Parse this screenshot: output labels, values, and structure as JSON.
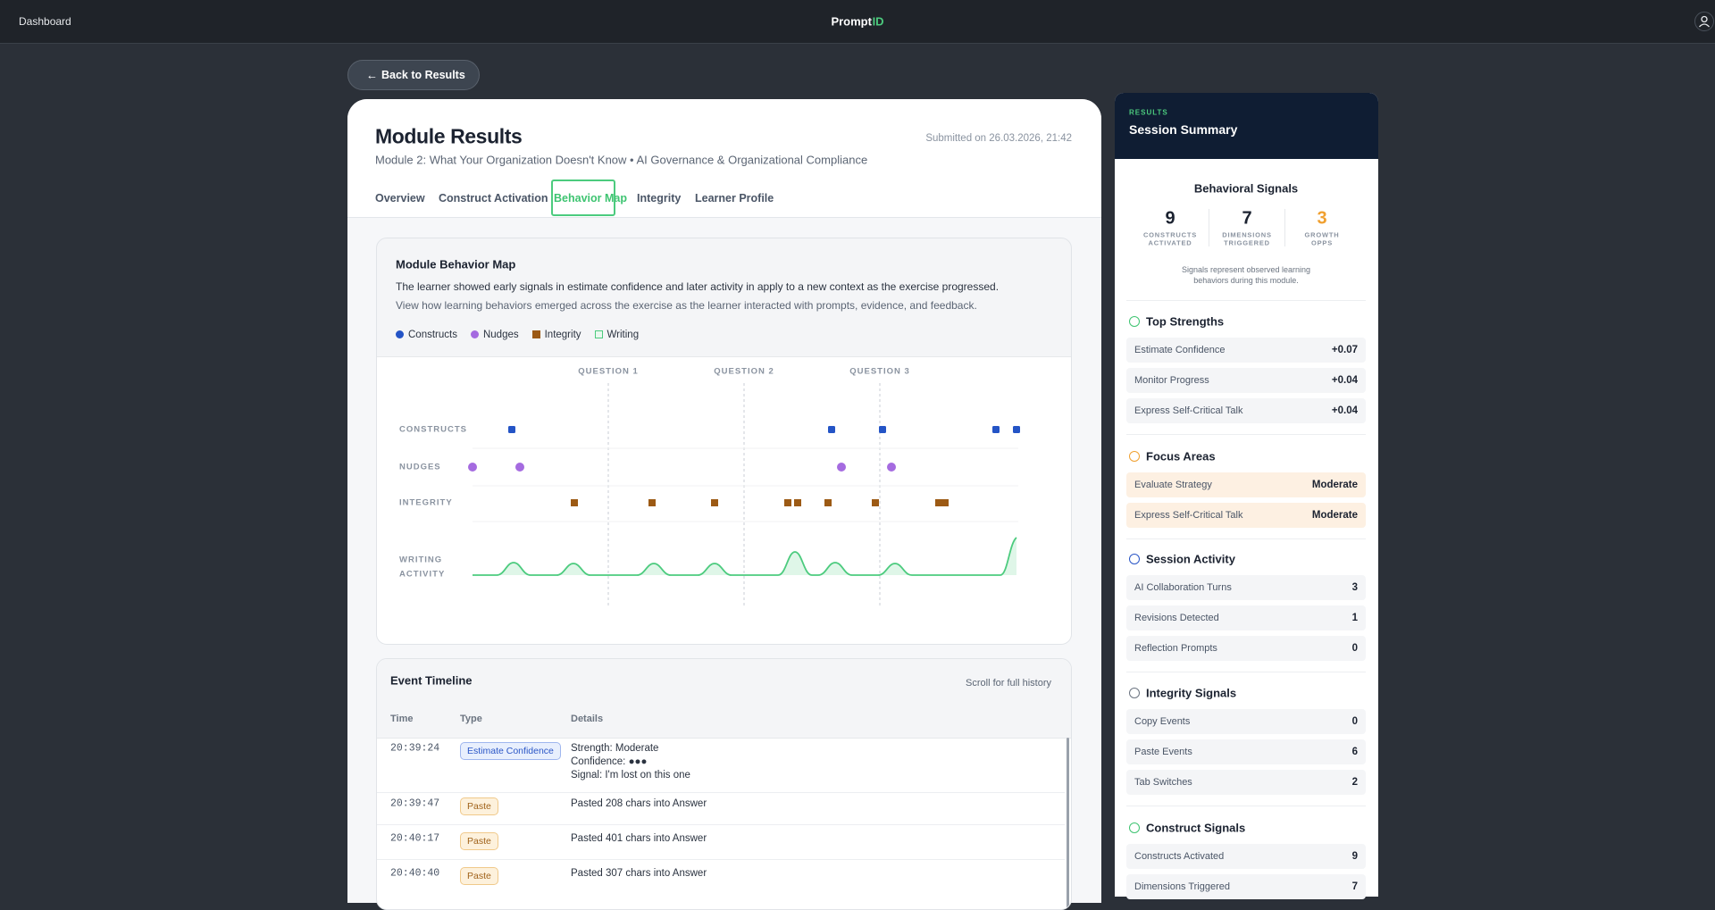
{
  "nav": {
    "left": "Dashboard",
    "brand": "Prompt",
    "brand_accent": "ID"
  },
  "back_button": "Back to Results",
  "header": {
    "title": "Module Results",
    "subtitle": "Module 2: What Your Organization Doesn't Know • AI Governance & Organizational Compliance",
    "submitted": "Submitted on 26.03.2026, 21:42"
  },
  "tabs": [
    "Overview",
    "Construct Activation",
    "Behavior Map",
    "Integrity",
    "Learner Profile"
  ],
  "active_tab": 2,
  "behavior_map": {
    "title": "Module Behavior Map",
    "summary": "The learner showed early signals in estimate confidence and later activity in apply to a new context as the exercise progressed.",
    "description": "View how learning behaviors emerged across the exercise as the learner interacted with prompts, evidence, and feedback.",
    "legend": [
      {
        "name": "Constructs",
        "color": "#2454c6",
        "shape": "circle"
      },
      {
        "name": "Nudges",
        "color": "#a56be0",
        "shape": "circle"
      },
      {
        "name": "Integrity",
        "color": "#9c5a14",
        "shape": "square"
      },
      {
        "name": "Writing",
        "color": "#4ccb7e",
        "shape": "outline"
      }
    ],
    "questions": [
      "QUESTION 1",
      "QUESTION 2",
      "QUESTION 3"
    ],
    "rows": [
      "CONSTRUCTS",
      "NUDGES",
      "INTEGRITY"
    ],
    "writing_row": [
      "WRITING",
      "ACTIVITY"
    ]
  },
  "timeline": {
    "title": "Event Timeline",
    "hint": "Scroll for full history",
    "columns": [
      "Time",
      "Type",
      "Details"
    ],
    "rows": [
      {
        "time": "20:39:24",
        "type": "Estimate Confidence",
        "badge_color": "blue",
        "details": [
          "Strength: Moderate",
          "Confidence: ●●●",
          "Signal: I'm lost on this one"
        ]
      },
      {
        "time": "20:39:47",
        "type": "Paste",
        "badge_color": "orange",
        "details": [
          "Pasted 208 chars into Answer"
        ]
      },
      {
        "time": "20:40:17",
        "type": "Paste",
        "badge_color": "orange",
        "details": [
          "Pasted 401 chars into Answer"
        ]
      },
      {
        "time": "20:40:40",
        "type": "Paste",
        "badge_color": "orange",
        "details": [
          "Pasted 307 chars into Answer"
        ]
      }
    ]
  },
  "summary": {
    "eyebrow": "RESULTS",
    "title": "Session Summary",
    "signals_title": "Behavioral Signals",
    "stats": [
      {
        "value": 9,
        "label": [
          "CONSTRUCTS",
          "ACTIVATED"
        ],
        "color": "#1b2230"
      },
      {
        "value": 7,
        "label": [
          "DIMENSIONS",
          "TRIGGERED"
        ],
        "color": "#1b2230"
      },
      {
        "value": 3,
        "label": [
          "GROWTH",
          "OPPS"
        ],
        "color": "#f0a030"
      }
    ],
    "note": "Signals represent observed learning behaviors during this module.",
    "sections": [
      {
        "title": "Top Strengths",
        "tone": "plain",
        "items": [
          {
            "label": "Estimate Confidence",
            "value": "+0.07"
          },
          {
            "label": "Monitor Progress",
            "value": "+0.04"
          },
          {
            "label": "Express Self-Critical Talk",
            "value": "+0.04"
          }
        ]
      },
      {
        "title": "Focus Areas",
        "tone": "warm",
        "items": [
          {
            "label": "Evaluate Strategy",
            "value": "Moderate"
          },
          {
            "label": "Express Self-Critical Talk",
            "value": "Moderate"
          }
        ]
      },
      {
        "title": "Session Activity",
        "tone": "plain",
        "items": [
          {
            "label": "AI Collaboration Turns",
            "value": 3
          },
          {
            "label": "Revisions Detected",
            "value": 1
          },
          {
            "label": "Reflection Prompts",
            "value": 0
          }
        ]
      },
      {
        "title": "Integrity Signals",
        "tone": "plain",
        "items": [
          {
            "label": "Copy Events",
            "value": 0
          },
          {
            "label": "Paste Events",
            "value": 6
          },
          {
            "label": "Tab Switches",
            "value": 2
          }
        ]
      },
      {
        "title": "Construct Signals",
        "tone": "plain",
        "items": [
          {
            "label": "Constructs Activated",
            "value": 9
          },
          {
            "label": "Dimensions Triggered",
            "value": 7
          }
        ]
      }
    ]
  }
}
